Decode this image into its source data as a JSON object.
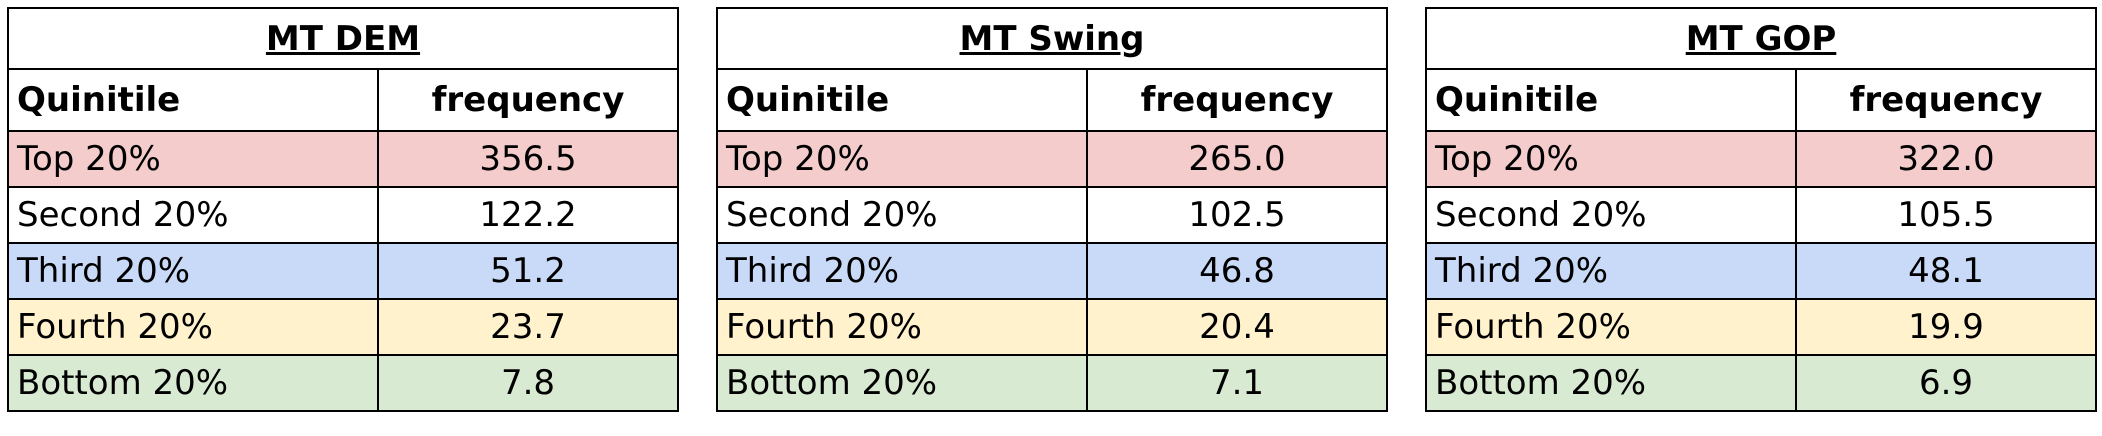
{
  "chart_data": [
    {
      "type": "table",
      "title": "MT DEM",
      "columns": [
        "Quinitile",
        "frequency"
      ],
      "rows": [
        {
          "label": "Top 20%",
          "value": "356.5",
          "color": "#f4cccc"
        },
        {
          "label": "Second 20%",
          "value": "122.2",
          "color": "#ffffff"
        },
        {
          "label": "Third 20%",
          "value": "51.2",
          "color": "#c9daf8"
        },
        {
          "label": "Fourth 20%",
          "value": "23.7",
          "color": "#fff2cc"
        },
        {
          "label": "Bottom 20%",
          "value": "7.8",
          "color": "#d9ead3"
        }
      ]
    },
    {
      "type": "table",
      "title": "MT Swing",
      "columns": [
        "Quinitile",
        "frequency"
      ],
      "rows": [
        {
          "label": "Top 20%",
          "value": "265.0",
          "color": "#f4cccc"
        },
        {
          "label": "Second 20%",
          "value": "102.5",
          "color": "#ffffff"
        },
        {
          "label": "Third 20%",
          "value": "46.8",
          "color": "#c9daf8"
        },
        {
          "label": "Fourth 20%",
          "value": "20.4",
          "color": "#fff2cc"
        },
        {
          "label": "Bottom 20%",
          "value": "7.1",
          "color": "#d9ead3"
        }
      ]
    },
    {
      "type": "table",
      "title": "MT GOP",
      "columns": [
        "Quinitile",
        "frequency"
      ],
      "rows": [
        {
          "label": "Top 20%",
          "value": "322.0",
          "color": "#f4cccc"
        },
        {
          "label": "Second 20%",
          "value": "105.5",
          "color": "#ffffff"
        },
        {
          "label": "Third 20%",
          "value": "48.1",
          "color": "#c9daf8"
        },
        {
          "label": "Fourth 20%",
          "value": "19.9",
          "color": "#fff2cc"
        },
        {
          "label": "Bottom 20%",
          "value": "6.9",
          "color": "#d9ead3"
        }
      ]
    }
  ]
}
